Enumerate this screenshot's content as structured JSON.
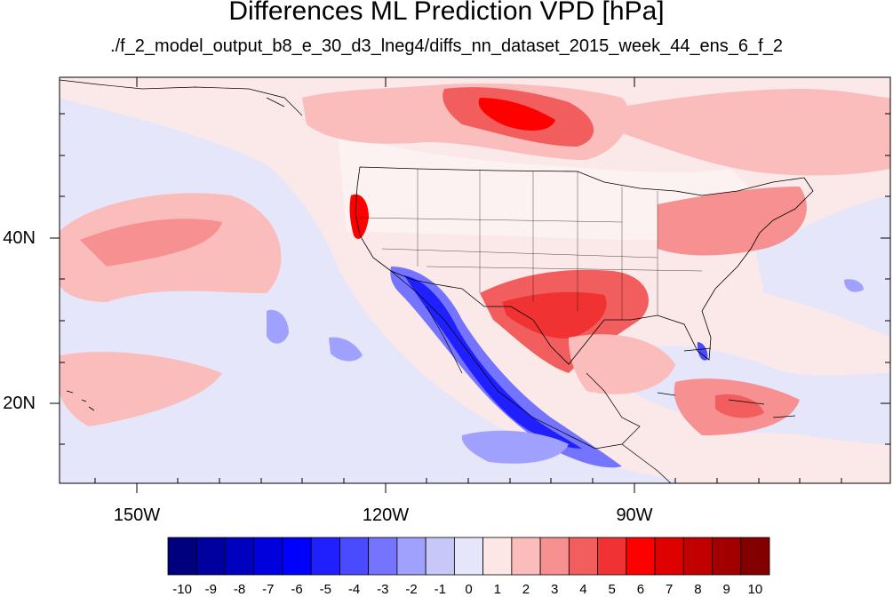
{
  "title": "Differences ML Prediction VPD [hPa]",
  "subtitle": "./f_2_model_output_b8_e_30_d3_lneg4/diffs_nn_dataset_2015_week_44_ens_6_f_2",
  "lon_labels": [
    "150W",
    "120W",
    "90W"
  ],
  "lat_labels": [
    "40N",
    "20N"
  ],
  "colorbar": {
    "labels": [
      "-10",
      "-9",
      "-8",
      "-7",
      "-6",
      "-5",
      "-4",
      "-3",
      "-2",
      "-1",
      "0",
      "1",
      "2",
      "3",
      "4",
      "5",
      "6",
      "7",
      "8",
      "9",
      "10"
    ],
    "colors": [
      "#00007f",
      "#00009f",
      "#0000bf",
      "#0000df",
      "#0000ff",
      "#2020ff",
      "#4a4aff",
      "#7474ff",
      "#a0a0ff",
      "#c8c8f8",
      "#e6e6fa",
      "#fde6e6",
      "#fbbcbc",
      "#f79090",
      "#f25e5e",
      "#f03232",
      "#ff0000",
      "#df0000",
      "#c20000",
      "#a20000",
      "#830000"
    ]
  },
  "map": {
    "background": "#fbe9e9",
    "lon_range": [
      "160W",
      "60W"
    ],
    "lat_range": [
      "10N",
      "58N"
    ]
  }
}
